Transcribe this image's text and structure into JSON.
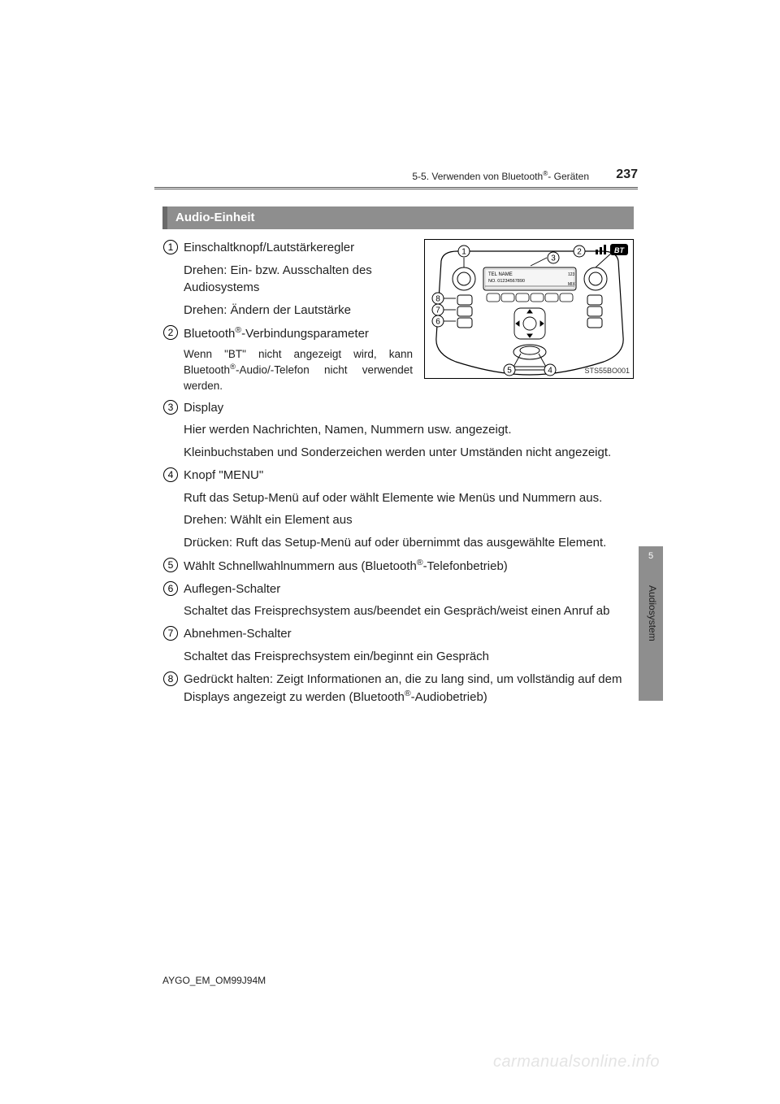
{
  "page": {
    "number": "237",
    "section_path_pre": "5-5. Verwenden von Bluetooth",
    "section_path_sup": "®",
    "section_path_post": "-  Geräten",
    "footer_code": "AYGO_EM_OM99J94M",
    "watermark": "carmanualsonline.info"
  },
  "side_tab": {
    "chapter": "5",
    "label": "Audiosystem"
  },
  "section_title": "Audio-Einheit",
  "figure": {
    "code": "STS55BO001",
    "callouts": [
      "1",
      "2",
      "3",
      "4",
      "5",
      "6",
      "7",
      "8"
    ],
    "screen": {
      "line1_l": "TEL",
      "line1_r": "NAME",
      "line2_l": "NO.",
      "line2_r": "01234567890",
      "badge_tr": "123",
      "badge_br": "MIX"
    }
  },
  "items": [
    {
      "n": "1",
      "title": "Einschaltknopf/Lautstärkeregler",
      "lines": [
        "Drehen: Ein- bzw. Ausschalten des Audiosystems",
        "Drehen: Ändern der Lautstärke"
      ],
      "left_constrained": true
    },
    {
      "n": "2",
      "title_html": "Bluetooth<sup>®</sup>-Verbindungsparameter",
      "small_html": "Wenn \"BT\" nicht angezeigt wird, kann Bluetooth<sup>®</sup>-Audio/-Telefon nicht ver­wendet werden.",
      "left_constrained": true
    },
    {
      "n": "3",
      "title": "Display",
      "lines": [
        "Hier werden Nachrichten, Namen, Nummern usw. angezeigt.",
        "Kleinbuchstaben und Sonderzeichen werden unter Umständen nicht ange­zeigt."
      ]
    },
    {
      "n": "4",
      "title": "Knopf \"MENU\"",
      "lines": [
        "Ruft das Setup-Menü auf oder wählt Elemente wie Menüs und Nummern aus.",
        "Drehen: Wählt ein Element aus",
        "Drücken: Ruft das Setup-Menü auf oder übernimmt das ausgewählte Ele­ment."
      ]
    },
    {
      "n": "5",
      "title_html": "Wählt Schnellwahlnummern aus (Bluetooth<sup>®</sup>-Telefonbetrieb)"
    },
    {
      "n": "6",
      "title": "Auflegen-Schalter",
      "lines": [
        "Schaltet das Freisprechsystem aus/beendet ein Gespräch/weist einen Anruf ab"
      ]
    },
    {
      "n": "7",
      "title": "Abnehmen-Schalter",
      "lines": [
        "Schaltet das Freisprechsystem ein/beginnt ein Gespräch"
      ]
    },
    {
      "n": "8",
      "title_html": "Gedrückt halten: Zeigt Informationen an, die zu lang sind, um vollständig auf dem Displays angezeigt zu werden (Bluetooth<sup>®</sup>-Audiobetrieb)"
    }
  ],
  "colors": {
    "bar_bg": "#8e8e8e",
    "bar_border": "#6a6a6a",
    "rule": "#555555",
    "text": "#222222",
    "watermark": "#e4e4e4"
  }
}
